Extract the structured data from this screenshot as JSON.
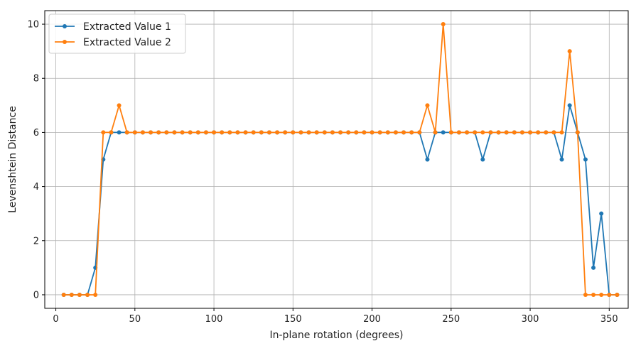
{
  "chart_data": {
    "type": "line",
    "xlabel": "In-plane rotation (degrees)",
    "ylabel": "Levenshtein Distance",
    "xlim": [
      -7,
      362
    ],
    "ylim": [
      -0.5,
      10.5
    ],
    "xticks": [
      0,
      50,
      100,
      150,
      200,
      250,
      300,
      350
    ],
    "yticks": [
      0,
      2,
      4,
      6,
      8,
      10
    ],
    "grid": true,
    "legend_position": "upper-left",
    "x": [
      5,
      10,
      15,
      20,
      25,
      30,
      35,
      40,
      45,
      50,
      55,
      60,
      65,
      70,
      75,
      80,
      85,
      90,
      95,
      100,
      105,
      110,
      115,
      120,
      125,
      130,
      135,
      140,
      145,
      150,
      155,
      160,
      165,
      170,
      175,
      180,
      185,
      190,
      195,
      200,
      205,
      210,
      215,
      220,
      225,
      230,
      235,
      240,
      245,
      250,
      255,
      260,
      265,
      270,
      275,
      280,
      285,
      290,
      295,
      300,
      305,
      310,
      315,
      320,
      325,
      330,
      335,
      340,
      345,
      350,
      355
    ],
    "series": [
      {
        "name": "Extracted Value 1",
        "color": "#1f77b4",
        "values": [
          0,
          0,
          0,
          0,
          1,
          5,
          6,
          6,
          6,
          6,
          6,
          6,
          6,
          6,
          6,
          6,
          6,
          6,
          6,
          6,
          6,
          6,
          6,
          6,
          6,
          6,
          6,
          6,
          6,
          6,
          6,
          6,
          6,
          6,
          6,
          6,
          6,
          6,
          6,
          6,
          6,
          6,
          6,
          6,
          6,
          6,
          5,
          6,
          6,
          6,
          6,
          6,
          6,
          5,
          6,
          6,
          6,
          6,
          6,
          6,
          6,
          6,
          6,
          5,
          7,
          6,
          5,
          1,
          3,
          0,
          0
        ]
      },
      {
        "name": "Extracted Value 2",
        "color": "#ff7f0e",
        "values": [
          0,
          0,
          0,
          0,
          0,
          6,
          6,
          7,
          6,
          6,
          6,
          6,
          6,
          6,
          6,
          6,
          6,
          6,
          6,
          6,
          6,
          6,
          6,
          6,
          6,
          6,
          6,
          6,
          6,
          6,
          6,
          6,
          6,
          6,
          6,
          6,
          6,
          6,
          6,
          6,
          6,
          6,
          6,
          6,
          6,
          6,
          7,
          6,
          10,
          6,
          6,
          6,
          6,
          6,
          6,
          6,
          6,
          6,
          6,
          6,
          6,
          6,
          6,
          6,
          9,
          6,
          0,
          0,
          0,
          0,
          0
        ]
      }
    ]
  }
}
